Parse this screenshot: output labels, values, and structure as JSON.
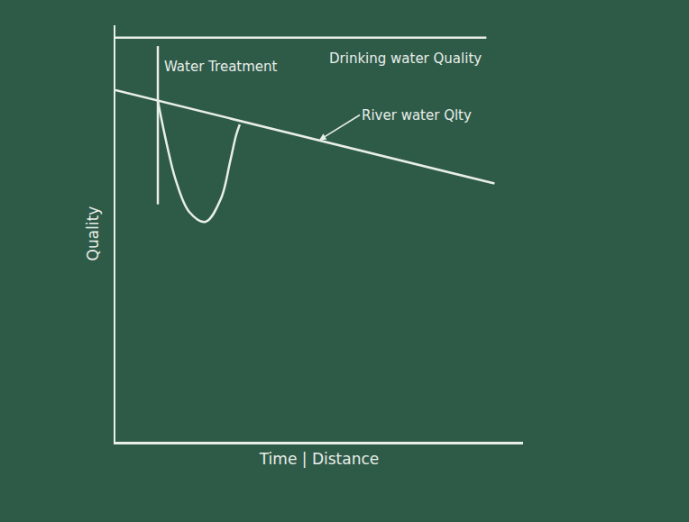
{
  "chart_data": {
    "type": "line",
    "x_label": "Time | Distance",
    "y_label": "Quality",
    "xlim": [
      0,
      100
    ],
    "ylim": [
      0,
      100
    ],
    "xticks": [],
    "yticks": [],
    "tick_labels": false,
    "grid": false,
    "series": [
      {
        "color": "#e8eee8",
        "line_style": "solid",
        "x": [
          0,
          91
        ],
        "values": [
          97,
          97
        ]
      },
      {
        "color": "#e8eee8",
        "line_style": "solid",
        "x": [
          0,
          93
        ],
        "values": [
          84.4,
          62
        ]
      },
      {
        "color": "#e8eee8",
        "line_style": "solid",
        "x": [
          10.4,
          10.4
        ],
        "values": [
          57,
          95
        ]
      },
      {
        "color": "#e8eee8",
        "line_style": "solid",
        "x": [
          10.4,
          12.6,
          14.8,
          18.1,
          22.1,
          25.9,
          28.1,
          29.6,
          30.5
        ],
        "values": [
          81.8,
          71.4,
          62.8,
          55.2,
          52.8,
          58.4,
          67.1,
          73.6,
          76.2
        ]
      }
    ],
    "annotations": [
      {
        "text": "Drinking water Quality",
        "x": 52,
        "y": 92,
        "arrow": false
      },
      {
        "text": "Water Treatment",
        "x": 11.5,
        "y": 90,
        "arrow": false
      },
      {
        "text": "River water Qlty",
        "x": 50,
        "y": 72.4,
        "arrow": true
      }
    ]
  }
}
